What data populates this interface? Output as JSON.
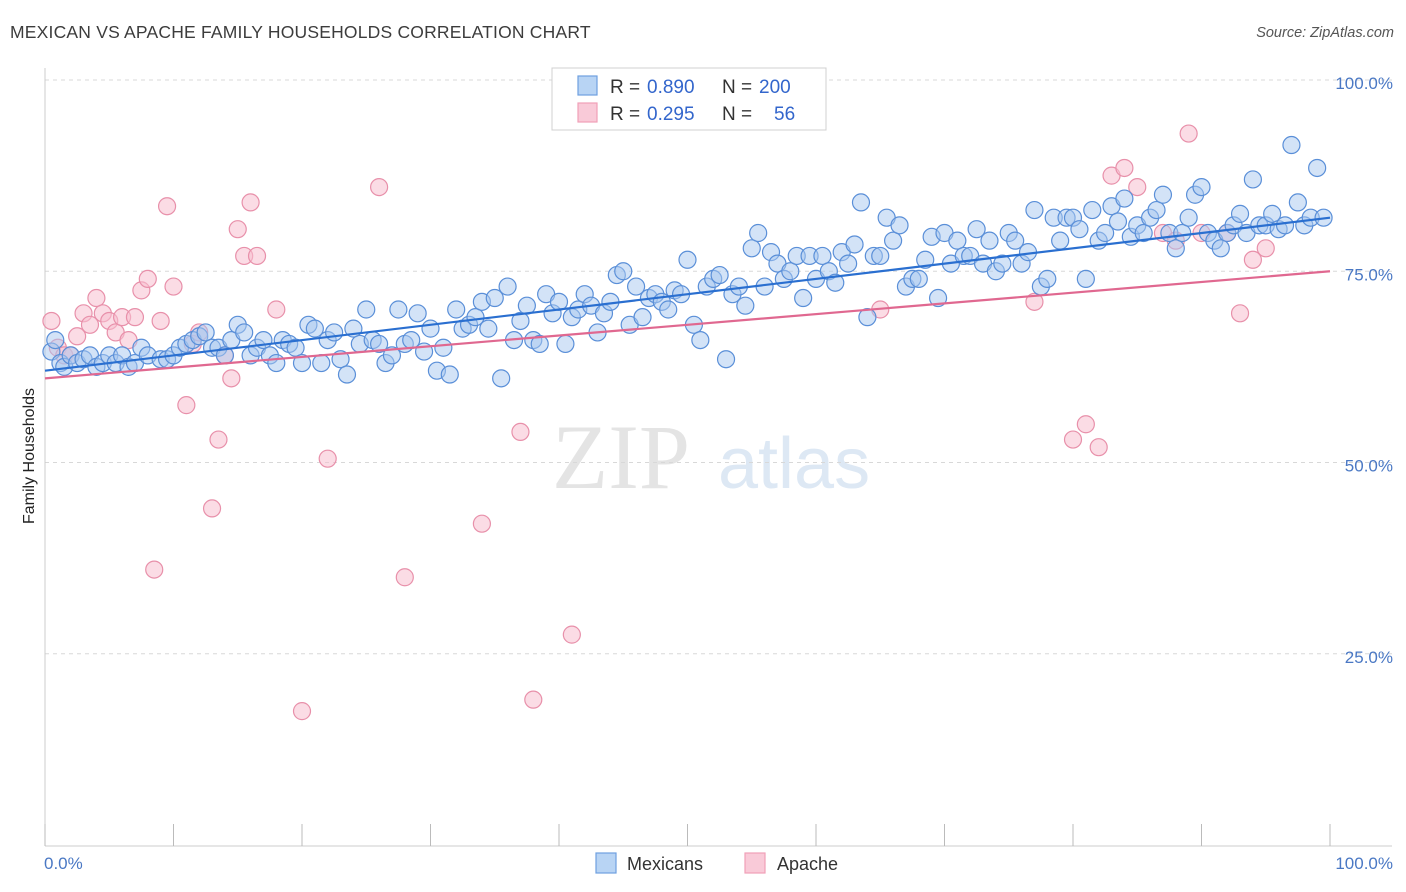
{
  "header": {
    "title": "MEXICAN VS APACHE FAMILY HOUSEHOLDS CORRELATION CHART",
    "source": "Source: ZipAtlas.com"
  },
  "watermark": {
    "zip": "ZIP",
    "atlas": "atlas"
  },
  "legend": {
    "rows": [
      {
        "r_label": "R =",
        "r_value": "0.890",
        "n_label": "N =",
        "n_value": "200",
        "color": "#6fa0e0"
      },
      {
        "r_label": "R =",
        "r_value": "0.295",
        "n_label": "N =",
        "n_value": "56",
        "color": "#f0a0b8"
      }
    ]
  },
  "colors": {
    "mexicans_fill": "#a8c8f0",
    "mexicans_stroke": "#5a8fd8",
    "mexicans_line": "#2a6fd0",
    "apache_fill": "#f7c0d0",
    "apache_stroke": "#e890aa",
    "apache_line": "#e06890",
    "grid": "#d8d8d8",
    "tick_label": "#4a78c4"
  },
  "chart_data": {
    "type": "scatter",
    "title": "MEXICAN VS APACHE FAMILY HOUSEHOLDS CORRELATION CHART",
    "xlabel": "",
    "ylabel": "Family Households",
    "xlim": [
      0,
      100
    ],
    "ylim": [
      0,
      105
    ],
    "x_tick_labels": [
      "0.0%",
      "100.0%"
    ],
    "y_ticks": [
      25,
      50,
      75,
      100
    ],
    "y_tick_labels": [
      "25.0%",
      "50.0%",
      "75.0%",
      "100.0%"
    ],
    "grid": true,
    "legend_position": "top-center",
    "series": [
      {
        "name": "Mexicans",
        "r": 0.89,
        "n": 200,
        "trend": {
          "x": [
            0,
            100
          ],
          "y": [
            62.0,
            82.0
          ]
        },
        "points": [
          [
            0.5,
            64.5
          ],
          [
            0.8,
            66
          ],
          [
            1.2,
            63
          ],
          [
            1.5,
            62.5
          ],
          [
            2,
            64
          ],
          [
            2.5,
            63
          ],
          [
            3,
            63.5
          ],
          [
            3.5,
            64
          ],
          [
            4,
            62.5
          ],
          [
            4.5,
            63
          ],
          [
            5,
            64
          ],
          [
            5.5,
            63
          ],
          [
            6,
            64
          ],
          [
            6.5,
            62.5
          ],
          [
            7,
            63
          ],
          [
            7.5,
            65
          ],
          [
            8,
            64
          ],
          [
            9,
            63.5
          ],
          [
            9.5,
            63.5
          ],
          [
            10,
            64
          ],
          [
            10.5,
            65
          ],
          [
            11,
            65.5
          ],
          [
            11.5,
            66
          ],
          [
            12,
            66.5
          ],
          [
            12.5,
            67
          ],
          [
            13,
            65
          ],
          [
            13.5,
            65
          ],
          [
            14,
            64
          ],
          [
            14.5,
            66
          ],
          [
            15,
            68
          ],
          [
            15.5,
            67
          ],
          [
            16,
            64
          ],
          [
            16.5,
            65
          ],
          [
            17,
            66
          ],
          [
            17.5,
            64
          ],
          [
            18,
            63
          ],
          [
            18.5,
            66
          ],
          [
            19,
            65.5
          ],
          [
            19.5,
            65
          ],
          [
            20,
            63
          ],
          [
            20.5,
            68
          ],
          [
            21,
            67.5
          ],
          [
            21.5,
            63
          ],
          [
            22,
            66
          ],
          [
            22.5,
            67
          ],
          [
            23,
            63.5
          ],
          [
            23.5,
            61.5
          ],
          [
            24,
            67.5
          ],
          [
            24.5,
            65.5
          ],
          [
            25,
            70
          ],
          [
            25.5,
            66
          ],
          [
            26,
            65.5
          ],
          [
            26.5,
            63
          ],
          [
            27,
            64
          ],
          [
            27.5,
            70
          ],
          [
            28,
            65.5
          ],
          [
            28.5,
            66
          ],
          [
            29,
            69.5
          ],
          [
            29.5,
            64.5
          ],
          [
            30,
            67.5
          ],
          [
            30.5,
            62
          ],
          [
            31,
            65
          ],
          [
            31.5,
            61.5
          ],
          [
            32,
            70
          ],
          [
            32.5,
            67.5
          ],
          [
            33,
            68
          ],
          [
            33.5,
            69
          ],
          [
            34,
            71
          ],
          [
            34.5,
            67.5
          ],
          [
            35,
            71.5
          ],
          [
            35.5,
            61
          ],
          [
            36,
            73
          ],
          [
            36.5,
            66
          ],
          [
            37,
            68.5
          ],
          [
            37.5,
            70.5
          ],
          [
            38,
            66
          ],
          [
            38.5,
            65.5
          ],
          [
            39,
            72
          ],
          [
            39.5,
            69.5
          ],
          [
            40,
            71
          ],
          [
            40.5,
            65.5
          ],
          [
            41,
            69
          ],
          [
            41.5,
            70
          ],
          [
            42,
            72
          ],
          [
            42.5,
            70.5
          ],
          [
            43,
            67
          ],
          [
            43.5,
            69.5
          ],
          [
            44,
            71
          ],
          [
            44.5,
            74.5
          ],
          [
            45,
            75
          ],
          [
            45.5,
            68
          ],
          [
            46,
            73
          ],
          [
            46.5,
            69
          ],
          [
            47,
            71.5
          ],
          [
            47.5,
            72
          ],
          [
            48,
            71
          ],
          [
            48.5,
            70
          ],
          [
            49,
            72.5
          ],
          [
            49.5,
            72
          ],
          [
            50,
            76.5
          ],
          [
            50.5,
            68
          ],
          [
            51,
            66
          ],
          [
            51.5,
            73
          ],
          [
            52,
            74
          ],
          [
            52.5,
            74.5
          ],
          [
            53,
            63.5
          ],
          [
            53.5,
            72
          ],
          [
            54,
            73
          ],
          [
            54.5,
            70.5
          ],
          [
            55,
            78
          ],
          [
            55.5,
            80
          ],
          [
            56,
            73
          ],
          [
            56.5,
            77.5
          ],
          [
            57,
            76
          ],
          [
            57.5,
            74
          ],
          [
            58,
            75
          ],
          [
            58.5,
            77
          ],
          [
            59,
            71.5
          ],
          [
            59.5,
            77
          ],
          [
            60,
            74
          ],
          [
            60.5,
            77
          ],
          [
            61,
            75
          ],
          [
            61.5,
            73.5
          ],
          [
            62,
            77.5
          ],
          [
            62.5,
            76
          ],
          [
            63,
            78.5
          ],
          [
            63.5,
            84
          ],
          [
            64,
            69
          ],
          [
            64.5,
            77
          ],
          [
            65,
            77
          ],
          [
            65.5,
            82
          ],
          [
            66,
            79
          ],
          [
            66.5,
            81
          ],
          [
            67,
            73
          ],
          [
            67.5,
            74
          ],
          [
            68,
            74
          ],
          [
            68.5,
            76.5
          ],
          [
            69,
            79.5
          ],
          [
            69.5,
            71.5
          ],
          [
            70,
            80
          ],
          [
            70.5,
            76
          ],
          [
            71,
            79
          ],
          [
            71.5,
            77
          ],
          [
            72,
            77
          ],
          [
            72.5,
            80.5
          ],
          [
            73,
            76
          ],
          [
            73.5,
            79
          ],
          [
            74,
            75
          ],
          [
            74.5,
            76
          ],
          [
            75,
            80
          ],
          [
            75.5,
            79
          ],
          [
            76,
            76
          ],
          [
            76.5,
            77.5
          ],
          [
            77,
            83
          ],
          [
            77.5,
            73
          ],
          [
            78,
            74
          ],
          [
            78.5,
            82
          ],
          [
            79,
            79
          ],
          [
            79.5,
            82
          ],
          [
            80,
            82
          ],
          [
            80.5,
            80.5
          ],
          [
            81,
            74
          ],
          [
            81.5,
            83
          ],
          [
            82,
            79
          ],
          [
            82.5,
            80
          ],
          [
            83,
            83.5
          ],
          [
            83.5,
            81.5
          ],
          [
            84,
            84.5
          ],
          [
            84.5,
            79.5
          ],
          [
            85,
            81
          ],
          [
            85.5,
            80
          ],
          [
            86,
            82
          ],
          [
            86.5,
            83
          ],
          [
            87,
            85
          ],
          [
            87.5,
            80
          ],
          [
            88,
            78
          ],
          [
            88.5,
            80
          ],
          [
            89,
            82
          ],
          [
            89.5,
            85
          ],
          [
            90,
            86
          ],
          [
            90.5,
            80
          ],
          [
            91,
            79
          ],
          [
            91.5,
            78
          ],
          [
            92,
            80
          ],
          [
            92.5,
            81
          ],
          [
            93,
            82.5
          ],
          [
            93.5,
            80
          ],
          [
            94,
            87
          ],
          [
            94.5,
            81
          ],
          [
            95,
            81
          ],
          [
            95.5,
            82.5
          ],
          [
            96,
            80.5
          ],
          [
            96.5,
            81
          ],
          [
            97,
            91.5
          ],
          [
            97.5,
            84
          ],
          [
            98,
            81
          ],
          [
            98.5,
            82
          ],
          [
            99,
            88.5
          ],
          [
            99.5,
            82
          ]
        ]
      },
      {
        "name": "Apache",
        "r": 0.295,
        "n": 56,
        "trend": {
          "x": [
            0,
            100
          ],
          "y": [
            61.0,
            75.0
          ]
        },
        "points": [
          [
            0.5,
            68.5
          ],
          [
            1,
            65
          ],
          [
            1.5,
            64
          ],
          [
            2,
            64
          ],
          [
            2.5,
            66.5
          ],
          [
            3,
            69.5
          ],
          [
            3.5,
            68
          ],
          [
            4,
            71.5
          ],
          [
            4.5,
            69.5
          ],
          [
            5,
            68.5
          ],
          [
            5.5,
            67
          ],
          [
            6,
            69
          ],
          [
            6.5,
            66
          ],
          [
            7,
            69
          ],
          [
            7.5,
            72.5
          ],
          [
            8,
            74
          ],
          [
            8.5,
            36
          ],
          [
            9,
            68.5
          ],
          [
            9.5,
            83.5
          ],
          [
            10,
            73
          ],
          [
            11,
            57.5
          ],
          [
            11.5,
            65.5
          ],
          [
            12,
            67
          ],
          [
            13,
            44
          ],
          [
            13.5,
            53
          ],
          [
            14,
            64
          ],
          [
            14.5,
            61
          ],
          [
            15,
            80.5
          ],
          [
            15.5,
            77
          ],
          [
            16,
            84
          ],
          [
            16.5,
            77
          ],
          [
            18,
            70
          ],
          [
            20,
            17.5
          ],
          [
            22,
            50.5
          ],
          [
            26,
            86
          ],
          [
            28,
            35
          ],
          [
            34,
            42
          ],
          [
            37,
            54
          ],
          [
            38,
            19
          ],
          [
            41,
            27.5
          ],
          [
            65,
            70
          ],
          [
            77,
            71
          ],
          [
            80,
            53
          ],
          [
            81,
            55
          ],
          [
            82,
            52
          ],
          [
            83,
            87.5
          ],
          [
            84,
            88.5
          ],
          [
            85,
            86
          ],
          [
            87,
            80
          ],
          [
            88,
            79
          ],
          [
            89,
            93
          ],
          [
            90,
            80
          ],
          [
            92,
            80
          ],
          [
            93,
            69.5
          ],
          [
            94,
            76.5
          ],
          [
            95,
            78
          ]
        ]
      }
    ]
  },
  "bottom_legend": {
    "items": [
      {
        "label": "Mexicans"
      },
      {
        "label": "Apache"
      }
    ]
  }
}
